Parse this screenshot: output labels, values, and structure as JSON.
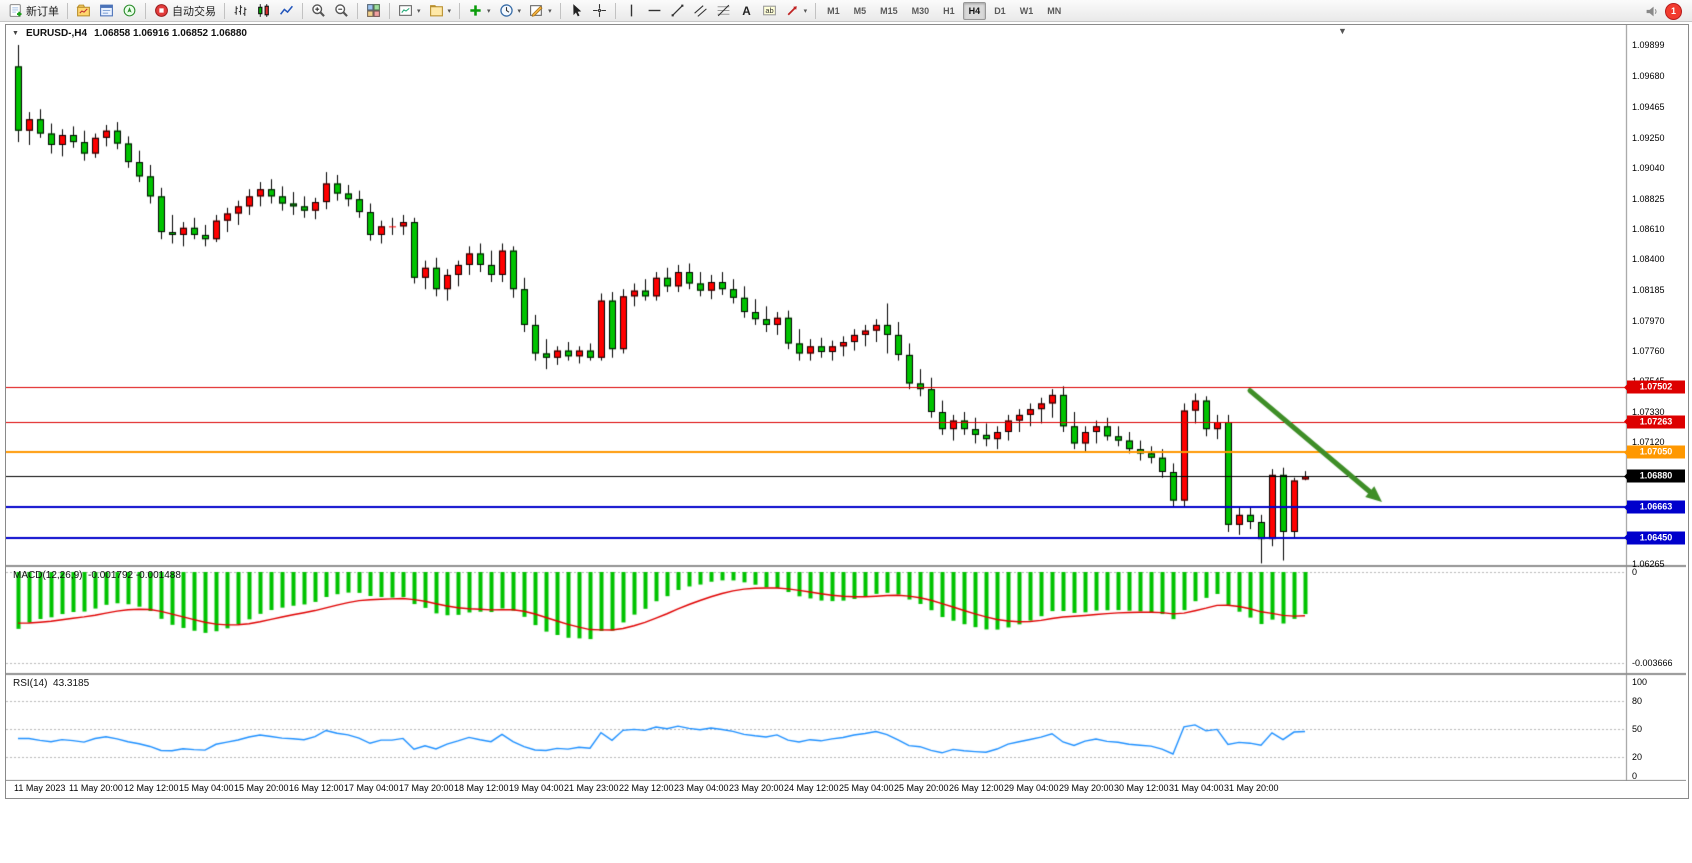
{
  "toolbar": {
    "items": [
      {
        "type": "btn",
        "name": "new-order-button",
        "icon": "new-order",
        "label": "新订单"
      },
      {
        "type": "sep"
      },
      {
        "type": "btn",
        "name": "market-watch-button",
        "icon": "market-watch"
      },
      {
        "type": "btn",
        "name": "data-window-button",
        "icon": "data-window"
      },
      {
        "type": "btn",
        "name": "navigator-button",
        "icon": "navigator"
      },
      {
        "type": "sep"
      },
      {
        "type": "btn",
        "name": "autotrading-button",
        "icon": "autotrading",
        "label": "自动交易"
      },
      {
        "type": "sep"
      },
      {
        "type": "btn",
        "name": "bar-chart-button",
        "icon": "bar-chart"
      },
      {
        "type": "btn",
        "name": "candlestick-chart-button",
        "icon": "candle-chart"
      },
      {
        "type": "btn",
        "name": "line-chart-button",
        "icon": "line-chart"
      },
      {
        "type": "sep"
      },
      {
        "type": "btn",
        "name": "zoom-in-button",
        "icon": "zoom-in"
      },
      {
        "type": "btn",
        "name": "zoom-out-button",
        "icon": "zoom-out"
      },
      {
        "type": "sep"
      },
      {
        "type": "btn",
        "name": "tile-windows-button",
        "icon": "tile-windows"
      },
      {
        "type": "sep"
      },
      {
        "type": "btn",
        "name": "new-chart-button",
        "icon": "new-chart",
        "caret": true
      },
      {
        "type": "btn",
        "name": "profiles-button",
        "icon": "profiles",
        "caret": true
      },
      {
        "type": "sep"
      },
      {
        "type": "btn",
        "name": "indicators-button",
        "icon": "indicators",
        "caret": true
      },
      {
        "type": "btn",
        "name": "periods-button",
        "icon": "periods",
        "caret": true
      },
      {
        "type": "btn",
        "name": "templates-button",
        "icon": "templates",
        "caret": true
      },
      {
        "type": "sep"
      },
      {
        "type": "btn",
        "name": "cursor-button",
        "icon": "cursor"
      },
      {
        "type": "btn",
        "name": "crosshair-button",
        "icon": "crosshair"
      },
      {
        "type": "sep"
      },
      {
        "type": "btn",
        "name": "vertical-line-button",
        "icon": "vline"
      },
      {
        "type": "btn",
        "name": "horizontal-line-button",
        "icon": "hline"
      },
      {
        "type": "btn",
        "name": "trendline-button",
        "icon": "trendline"
      },
      {
        "type": "btn",
        "name": "equidistant-channel-button",
        "icon": "channel"
      },
      {
        "type": "btn",
        "name": "fibonacci-button",
        "icon": "fibonacci"
      },
      {
        "type": "btn",
        "name": "text-button",
        "icon": "text"
      },
      {
        "type": "btn",
        "name": "text-label-button",
        "icon": "text-label"
      },
      {
        "type": "btn",
        "name": "arrows-button",
        "icon": "arrows",
        "caret": true
      },
      {
        "type": "sep"
      }
    ],
    "timeframes": [
      "M1",
      "M5",
      "M15",
      "M30",
      "H1",
      "H4",
      "D1",
      "W1",
      "MN"
    ],
    "active_timeframe": "H4",
    "notification_count": "1"
  },
  "chart": {
    "title": "EURUSD-,H4",
    "ohlc": "1.06858 1.06916 1.06852 1.06880"
  },
  "macd": {
    "label": "MACD(12,26,9)",
    "values": "-0.001792 -0.001488",
    "axis": [
      "0",
      "-0.003666"
    ]
  },
  "rsi": {
    "label": "RSI(14)",
    "value": "43.3185",
    "axis": [
      "100",
      "80",
      "50",
      "20",
      "0"
    ]
  },
  "chart_data": {
    "type": "candlestick",
    "symbol": "EURUSD-",
    "period": "H4",
    "last_open": 1.06858,
    "last_high": 1.06916,
    "last_low": 1.06852,
    "last_close": 1.0688,
    "colors": {
      "up": "#ff0000",
      "down": "#00c300",
      "wick": "#000000",
      "macd_hist": "#00c300",
      "macd_signal": "#e00000",
      "rsi": "#1e90ff",
      "arrow": "#3e8e27"
    },
    "y_axis_labels": [
      "1.09899",
      "1.09680",
      "1.09465",
      "1.09250",
      "1.09040",
      "1.08825",
      "1.08610",
      "1.08400",
      "1.08185",
      "1.07970",
      "1.07760",
      "1.07545",
      "1.07330",
      "1.07120",
      "1.06265"
    ],
    "price_lines": [
      {
        "price": 1.07502,
        "label": "1.07502",
        "color": "#dd0000",
        "width": 1
      },
      {
        "price": 1.07263,
        "label": "1.07263",
        "color": "#dd0000",
        "width": 1
      },
      {
        "price": 1.0705,
        "label": "1.07050",
        "color": "#ff9800",
        "width": 2
      },
      {
        "price": 1.0688,
        "label": "1.06880",
        "color": "#000000",
        "width": 1,
        "role": "current"
      },
      {
        "price": 1.06663,
        "label": "1.06663",
        "color": "#0000cc",
        "width": 2
      },
      {
        "price": 1.0645,
        "label": "1.06450",
        "color": "#0000cc",
        "width": 2
      }
    ],
    "arrow": {
      "from_bar": 112,
      "from_price": 1.0748,
      "to_bar": 124,
      "to_price": 1.067
    },
    "x_labels": [
      "11 May 2023",
      "11 May 20:00",
      "12 May 12:00",
      "15 May 04:00",
      "15 May 20:00",
      "16 May 12:00",
      "17 May 04:00",
      "17 May 20:00",
      "18 May 12:00",
      "19 May 04:00",
      "21 May 23:00",
      "22 May 12:00",
      "23 May 04:00",
      "23 May 20:00",
      "24 May 12:00",
      "25 May 04:00",
      "25 May 20:00",
      "26 May 12:00",
      "29 May 04:00",
      "29 May 20:00",
      "30 May 12:00",
      "31 May 04:00",
      "31 May 20:00"
    ],
    "candles": [
      [
        1.0975,
        1.099,
        1.0922,
        1.093
      ],
      [
        1.093,
        1.0943,
        1.092,
        1.0938
      ],
      [
        1.0938,
        1.0945,
        1.0925,
        1.0928
      ],
      [
        1.0928,
        1.0935,
        1.0914,
        1.092
      ],
      [
        1.092,
        1.0931,
        1.0912,
        1.0927
      ],
      [
        1.0927,
        1.0933,
        1.0918,
        1.0922
      ],
      [
        1.0922,
        1.093,
        1.0909,
        1.0914
      ],
      [
        1.0914,
        1.0928,
        1.0911,
        1.0925
      ],
      [
        1.0925,
        1.0934,
        1.0919,
        1.093
      ],
      [
        1.093,
        1.0936,
        1.0917,
        1.0921
      ],
      [
        1.0921,
        1.0926,
        1.0904,
        1.0908
      ],
      [
        1.0908,
        1.0916,
        1.0894,
        1.0898
      ],
      [
        1.0898,
        1.0906,
        1.0879,
        1.0884
      ],
      [
        1.0884,
        1.089,
        1.0854,
        1.0859
      ],
      [
        1.0859,
        1.0871,
        1.0851,
        1.0857
      ],
      [
        1.0857,
        1.0866,
        1.0849,
        1.0862
      ],
      [
        1.0862,
        1.0869,
        1.0854,
        1.0857
      ],
      [
        1.0857,
        1.0864,
        1.0849,
        1.0854
      ],
      [
        1.0854,
        1.0871,
        1.0852,
        1.0867
      ],
      [
        1.0867,
        1.0876,
        1.0859,
        1.0872
      ],
      [
        1.0872,
        1.0881,
        1.0864,
        1.0877
      ],
      [
        1.0877,
        1.0889,
        1.0871,
        1.0884
      ],
      [
        1.0884,
        1.0894,
        1.0877,
        1.0889
      ],
      [
        1.0889,
        1.0896,
        1.0879,
        1.0884
      ],
      [
        1.0884,
        1.0891,
        1.0874,
        1.0879
      ],
      [
        1.0879,
        1.0887,
        1.0871,
        1.0877
      ],
      [
        1.0877,
        1.0884,
        1.0869,
        1.0874
      ],
      [
        1.0874,
        1.0883,
        1.0868,
        1.088
      ],
      [
        1.088,
        1.0901,
        1.0875,
        1.0893
      ],
      [
        1.0893,
        1.0899,
        1.0881,
        1.0886
      ],
      [
        1.0886,
        1.0892,
        1.0877,
        1.0882
      ],
      [
        1.0882,
        1.0888,
        1.0869,
        1.0873
      ],
      [
        1.0873,
        1.0879,
        1.0853,
        1.0857
      ],
      [
        1.0857,
        1.0867,
        1.0851,
        1.0863
      ],
      [
        1.0863,
        1.0869,
        1.0857,
        1.0863
      ],
      [
        1.0863,
        1.0871,
        1.0857,
        1.0866
      ],
      [
        1.0866,
        1.0869,
        1.0823,
        1.0827
      ],
      [
        1.0827,
        1.0839,
        1.0819,
        1.0834
      ],
      [
        1.0834,
        1.0841,
        1.0814,
        1.0819
      ],
      [
        1.0819,
        1.0833,
        1.0811,
        1.0829
      ],
      [
        1.0829,
        1.0839,
        1.0821,
        1.0836
      ],
      [
        1.0836,
        1.0849,
        1.0829,
        1.0844
      ],
      [
        1.0844,
        1.0851,
        1.0831,
        1.0836
      ],
      [
        1.0836,
        1.0846,
        1.0824,
        1.0829
      ],
      [
        1.0829,
        1.0851,
        1.0824,
        1.0846
      ],
      [
        1.0846,
        1.0849,
        1.0813,
        1.0819
      ],
      [
        1.0819,
        1.0827,
        1.0789,
        1.0794
      ],
      [
        1.0794,
        1.0801,
        1.0769,
        1.0774
      ],
      [
        1.0774,
        1.0784,
        1.0763,
        1.0771
      ],
      [
        1.0771,
        1.0779,
        1.0766,
        1.0776
      ],
      [
        1.0776,
        1.0782,
        1.0769,
        1.0772
      ],
      [
        1.0772,
        1.0779,
        1.0767,
        1.0776
      ],
      [
        1.0776,
        1.0781,
        1.0769,
        1.0771
      ],
      [
        1.0771,
        1.0816,
        1.0769,
        1.0811
      ],
      [
        1.0811,
        1.0817,
        1.0771,
        1.0777
      ],
      [
        1.0777,
        1.0819,
        1.0774,
        1.0814
      ],
      [
        1.0814,
        1.0823,
        1.0807,
        1.0818
      ],
      [
        1.0818,
        1.0826,
        1.0811,
        1.0814
      ],
      [
        1.0814,
        1.0831,
        1.0811,
        1.0827
      ],
      [
        1.0827,
        1.0834,
        1.0817,
        1.0821
      ],
      [
        1.0821,
        1.0836,
        1.0817,
        1.0831
      ],
      [
        1.0831,
        1.0837,
        1.0819,
        1.0823
      ],
      [
        1.0823,
        1.0831,
        1.0814,
        1.0818
      ],
      [
        1.0818,
        1.0829,
        1.0812,
        1.0824
      ],
      [
        1.0824,
        1.0831,
        1.0815,
        1.0819
      ],
      [
        1.0819,
        1.0826,
        1.0809,
        1.0813
      ],
      [
        1.0813,
        1.0821,
        1.0799,
        1.0803
      ],
      [
        1.0803,
        1.0812,
        1.0794,
        1.0798
      ],
      [
        1.0798,
        1.0807,
        1.0789,
        1.0794
      ],
      [
        1.0794,
        1.0803,
        1.0787,
        1.0799
      ],
      [
        1.0799,
        1.0804,
        1.0777,
        1.0781
      ],
      [
        1.0781,
        1.0791,
        1.0769,
        1.0774
      ],
      [
        1.0774,
        1.0784,
        1.0769,
        1.0779
      ],
      [
        1.0779,
        1.0785,
        1.0771,
        1.0775
      ],
      [
        1.0775,
        1.0783,
        1.0769,
        1.0779
      ],
      [
        1.0779,
        1.0786,
        1.0772,
        1.0782
      ],
      [
        1.0782,
        1.0791,
        1.0776,
        1.0787
      ],
      [
        1.0787,
        1.0794,
        1.0779,
        1.079
      ],
      [
        1.079,
        1.0798,
        1.0782,
        1.0794
      ],
      [
        1.0794,
        1.0809,
        1.0774,
        1.0787
      ],
      [
        1.0787,
        1.0796,
        1.0769,
        1.0773
      ],
      [
        1.0773,
        1.0781,
        1.0749,
        1.0753
      ],
      [
        1.0753,
        1.0763,
        1.0744,
        1.0749
      ],
      [
        1.0749,
        1.0757,
        1.0729,
        1.0733
      ],
      [
        1.0733,
        1.0741,
        1.0717,
        1.0721
      ],
      [
        1.0721,
        1.0731,
        1.0713,
        1.0727
      ],
      [
        1.0727,
        1.0733,
        1.0717,
        1.0721
      ],
      [
        1.0721,
        1.0729,
        1.0711,
        1.0717
      ],
      [
        1.0717,
        1.0725,
        1.0709,
        1.0714
      ],
      [
        1.0714,
        1.0723,
        1.0707,
        1.0719
      ],
      [
        1.0719,
        1.0731,
        1.0713,
        1.0727
      ],
      [
        1.0727,
        1.0735,
        1.0719,
        1.0731
      ],
      [
        1.0731,
        1.0739,
        1.0723,
        1.0735
      ],
      [
        1.0735,
        1.0743,
        1.0725,
        1.0739
      ],
      [
        1.0739,
        1.0749,
        1.0729,
        1.0745
      ],
      [
        1.0745,
        1.0751,
        1.0719,
        1.0723
      ],
      [
        1.0723,
        1.0733,
        1.0707,
        1.0711
      ],
      [
        1.0711,
        1.0723,
        1.0705,
        1.0719
      ],
      [
        1.0719,
        1.0727,
        1.0711,
        1.0723
      ],
      [
        1.0723,
        1.0729,
        1.0713,
        1.0716
      ],
      [
        1.0716,
        1.0723,
        1.0709,
        1.0713
      ],
      [
        1.0713,
        1.0719,
        1.0704,
        1.0707
      ],
      [
        1.0707,
        1.0713,
        1.0699,
        1.0704
      ],
      [
        1.0704,
        1.0709,
        1.0697,
        1.0701
      ],
      [
        1.0701,
        1.0707,
        1.0687,
        1.0691
      ],
      [
        1.0691,
        1.0697,
        1.0666,
        1.0671
      ],
      [
        1.0671,
        1.0739,
        1.0667,
        1.0734
      ],
      [
        1.0734,
        1.0746,
        1.0725,
        1.0741
      ],
      [
        1.0741,
        1.0744,
        1.0716,
        1.0721
      ],
      [
        1.0721,
        1.0731,
        1.0714,
        1.0726
      ],
      [
        1.0726,
        1.0731,
        1.0649,
        1.0654
      ],
      [
        1.0654,
        1.0667,
        1.0647,
        1.0661
      ],
      [
        1.0661,
        1.0666,
        1.0651,
        1.0656
      ],
      [
        1.0656,
        1.0661,
        1.0627,
        1.0644
      ],
      [
        1.0644,
        1.0693,
        1.0639,
        1.0689
      ],
      [
        1.0689,
        1.0694,
        1.0629,
        1.0649
      ],
      [
        1.0649,
        1.0687,
        1.0645,
        1.0685
      ],
      [
        1.06858,
        1.06916,
        1.06852,
        1.0688
      ]
    ]
  }
}
